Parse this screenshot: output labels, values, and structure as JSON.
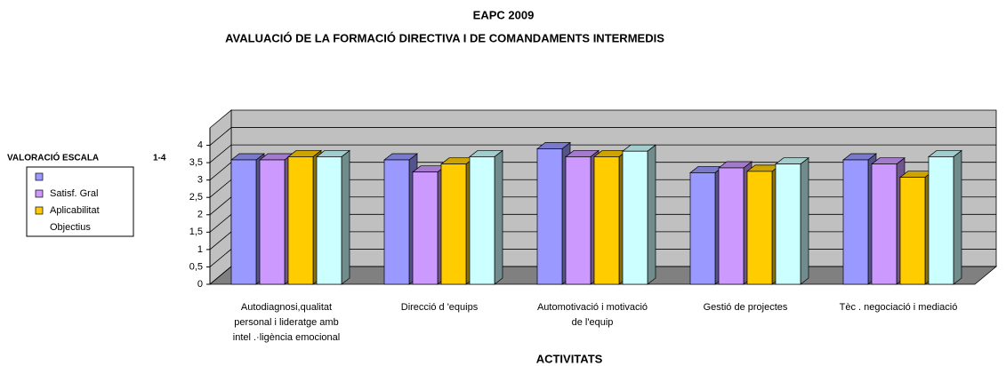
{
  "chart_data": {
    "type": "bar3d",
    "title": "EAPC 2009",
    "subtitle": "AVALUACIÓ DE LA FORMACIÓ DIRECTIVA I DE COMANDAMENTS INTERMEDIS",
    "y_label": [
      "VALORACIÓ ESCALA",
      "1-4"
    ],
    "x_label": "ACTIVITATS",
    "categories": [
      [
        "Autodiagnosi,qualitat",
        "personal i lideratge amb",
        "intel .·ligència emocional"
      ],
      [
        "Direcció d   'equips"
      ],
      [
        "Automotivació i motivació",
        "de l'equip"
      ],
      [
        "Gestió de projectes"
      ],
      [
        "Tèc . negociació i mediació"
      ]
    ],
    "series": [
      {
        "name": null,
        "color": "#9999ff",
        "values": [
          3.58,
          3.58,
          3.9,
          3.21,
          3.58
        ]
      },
      {
        "name": "Satisf. Gral",
        "color": "#cc99ff",
        "values": [
          3.58,
          3.23,
          3.67,
          3.35,
          3.46
        ]
      },
      {
        "name": "Aplicabilitat",
        "color": "#ffcc00",
        "values": [
          3.67,
          3.46,
          3.67,
          3.25,
          3.08
        ]
      },
      {
        "name": "Objectius",
        "color": "#ccffff",
        "values": [
          3.67,
          3.67,
          3.83,
          3.46,
          3.67
        ]
      }
    ],
    "ylim": [
      0,
      4.5
    ],
    "yticks": [
      0,
      {
        "value": 0.5,
        "label": "0,5"
      },
      1,
      {
        "value": 1.5,
        "label": "1,5"
      },
      2,
      {
        "value": 2.5,
        "label": "2,5"
      },
      3,
      {
        "value": 3.5,
        "label": "3,5"
      },
      4
    ],
    "grid": true
  }
}
